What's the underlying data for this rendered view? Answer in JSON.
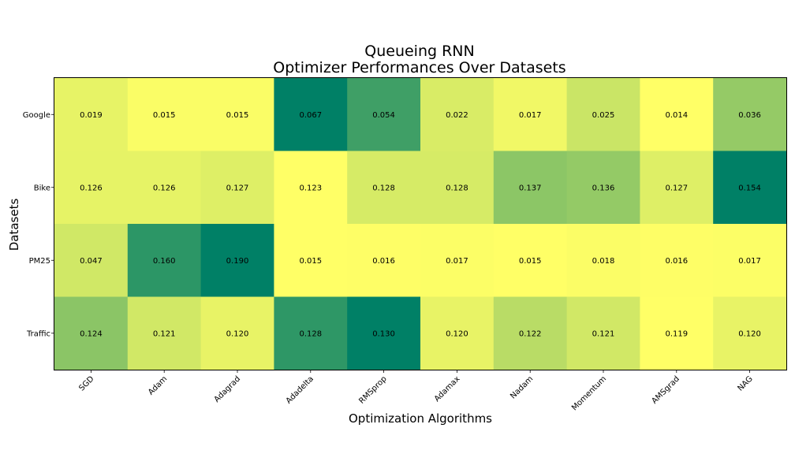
{
  "chart_data": {
    "type": "heatmap",
    "title": "Queueing RNN",
    "subtitle": "Optimizer Performances Over Datasets",
    "xlabel": "Optimization Algorithms",
    "ylabel": "Datasets",
    "x_categories": [
      "SGD",
      "Adam",
      "Adagrad",
      "Adadelta",
      "RMSprop",
      "Adamax",
      "Nadam",
      "Momentum",
      "AMSgrad",
      "NAG"
    ],
    "y_categories": [
      "Google",
      "Bike",
      "PM25",
      "Traffic"
    ],
    "values": [
      [
        0.019,
        0.015,
        0.015,
        0.067,
        0.054,
        0.022,
        0.017,
        0.025,
        0.014,
        0.036
      ],
      [
        0.126,
        0.126,
        0.127,
        0.123,
        0.128,
        0.128,
        0.137,
        0.136,
        0.127,
        0.154
      ],
      [
        0.047,
        0.16,
        0.19,
        0.015,
        0.016,
        0.017,
        0.015,
        0.018,
        0.016,
        0.017
      ],
      [
        0.124,
        0.121,
        0.12,
        0.128,
        0.13,
        0.12,
        0.122,
        0.121,
        0.119,
        0.12
      ]
    ],
    "value_format": "3 decimals",
    "colormap": "summer_r",
    "color_scale": "per row",
    "colors": {
      "low": "#ffff66",
      "high": "#008066"
    },
    "grid": false,
    "legend": "none"
  }
}
